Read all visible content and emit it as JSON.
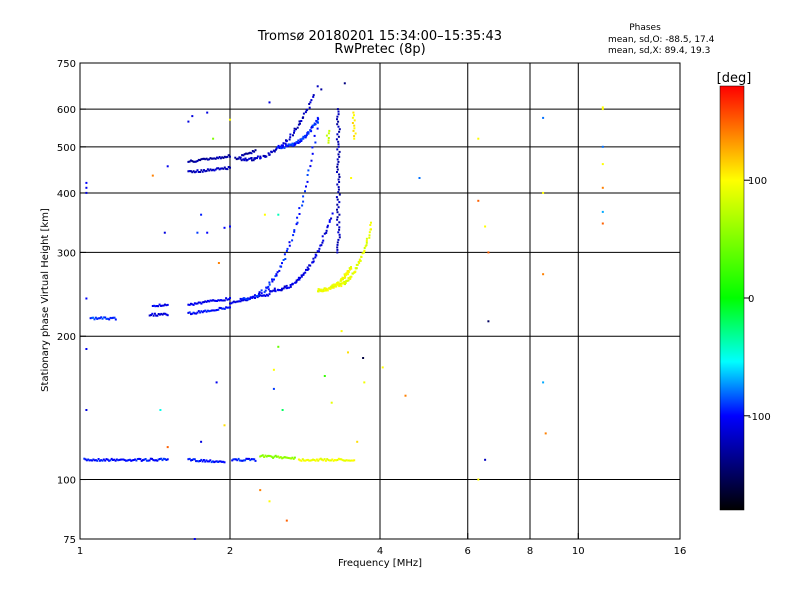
{
  "header": {
    "title_line1": "Tromsø 20180201 15:34:00–15:35:43",
    "title_line2": "RwPretec (8p)"
  },
  "stats": {
    "title": "Phases",
    "line_o": "mean, sd,O: -88.5, 17.4",
    "line_x": "mean, sd,X:  89.4, 19.3"
  },
  "colorbar": {
    "label": "[deg]",
    "range": [
      -180,
      180
    ],
    "ticks": [
      {
        "value": 100,
        "label": "100"
      },
      {
        "value": 0,
        "label": "0"
      },
      {
        "value": -100,
        "label": "-100"
      }
    ]
  },
  "chart_data": {
    "type": "scatter",
    "title": "Tromsø 20180201 15:34:00–15:35:43",
    "subtitle": "RwPretec (8p)",
    "xlabel": "Frequency [MHz]",
    "ylabel": "Stationary phase Virtual Height [km]",
    "xlim": [
      1,
      16
    ],
    "ylim": [
      75,
      750
    ],
    "x_scale": "log",
    "y_scale": "log",
    "x_ticks": [
      {
        "value": 1,
        "label": "1"
      },
      {
        "value": 2,
        "label": "2"
      },
      {
        "value": 4,
        "label": "4"
      },
      {
        "value": 6,
        "label": "6"
      },
      {
        "value": 8,
        "label": "8"
      },
      {
        "value": 10,
        "label": "10"
      },
      {
        "value": 16,
        "label": "16"
      }
    ],
    "y_ticks": [
      {
        "value": 75,
        "label": "75"
      },
      {
        "value": 100,
        "label": "100"
      },
      {
        "value": 200,
        "label": "200"
      },
      {
        "value": 300,
        "label": "300"
      },
      {
        "value": 400,
        "label": "400"
      },
      {
        "value": 500,
        "label": "500"
      },
      {
        "value": 600,
        "label": "600"
      },
      {
        "value": 750,
        "label": "750"
      }
    ],
    "grid_x": [
      2,
      4,
      6,
      8,
      10
    ],
    "grid_y": [
      100,
      200,
      300,
      400,
      500,
      600
    ],
    "color_scale": "phase deg (-180 black, -100 blue, 0 green, 100 yellow, 180 red)",
    "segments": [
      {
        "x0": 1.02,
        "x1": 1.5,
        "y0": 110,
        "y1": 110,
        "phase": -98
      },
      {
        "x0": 1.65,
        "x1": 1.95,
        "y0": 110,
        "y1": 109,
        "phase": -98
      },
      {
        "x0": 2.02,
        "x1": 2.25,
        "y0": 110,
        "y1": 110,
        "phase": -95
      },
      {
        "x0": 2.3,
        "x1": 2.7,
        "y0": 112,
        "y1": 111,
        "phase": 55
      },
      {
        "x0": 2.75,
        "x1": 3.55,
        "y0": 110,
        "y1": 110,
        "phase": 95
      },
      {
        "x0": 1.38,
        "x1": 1.5,
        "y0": 222,
        "y1": 222,
        "phase": -110
      },
      {
        "x0": 1.4,
        "x1": 1.5,
        "y0": 232,
        "y1": 232,
        "phase": -105
      },
      {
        "x0": 1.65,
        "x1": 2.0,
        "y0": 223,
        "y1": 230,
        "phase": -100
      },
      {
        "x0": 1.65,
        "x1": 2.0,
        "y0": 233,
        "y1": 240,
        "phase": -105
      },
      {
        "x0": 2.0,
        "x1": 2.4,
        "y0": 235,
        "y1": 245,
        "phase": -110
      },
      {
        "x0": 1.65,
        "x1": 2.0,
        "y0": 442,
        "y1": 452,
        "phase": -120
      },
      {
        "x0": 1.65,
        "x1": 2.0,
        "y0": 465,
        "y1": 478,
        "phase": -130
      },
      {
        "x0": 2.05,
        "x1": 2.25,
        "y0": 472,
        "y1": 490,
        "phase": -130
      },
      {
        "x0": 1.05,
        "x1": 1.18,
        "y0": 218,
        "y1": 218,
        "phase": -90
      }
    ],
    "curves": [
      {
        "x0": 2.1,
        "x1": 3.0,
        "y_start": 240,
        "y_end": 560,
        "phase": -95
      },
      {
        "x0": 2.4,
        "x1": 3.2,
        "y_start": 250,
        "y_end": 360,
        "phase": -110
      },
      {
        "x0": 2.1,
        "x1": 2.95,
        "y_start": 470,
        "y_end": 640,
        "phase": -120
      },
      {
        "x0": 2.5,
        "x1": 3.0,
        "y_start": 500,
        "y_end": 575,
        "phase": -95
      },
      {
        "x0": 3.2,
        "x1": 3.85,
        "y_start": 255,
        "y_end": 345,
        "phase": 90
      },
      {
        "x0": 3.0,
        "x1": 3.5,
        "y_start": 250,
        "y_end": 280,
        "phase": 95
      }
    ],
    "vertical_traces": [
      {
        "x": 3.3,
        "y0": 300,
        "y1": 600,
        "phase": -125
      },
      {
        "x": 3.55,
        "y0": 520,
        "y1": 590,
        "phase": 105
      },
      {
        "x": 3.15,
        "y0": 510,
        "y1": 540,
        "phase": 80
      }
    ],
    "points": [
      {
        "x": 1.03,
        "y": 420,
        "phase": -100
      },
      {
        "x": 1.03,
        "y": 410,
        "phase": -105
      },
      {
        "x": 1.03,
        "y": 400,
        "phase": -110
      },
      {
        "x": 1.03,
        "y": 240,
        "phase": -100
      },
      {
        "x": 1.03,
        "y": 188,
        "phase": -105
      },
      {
        "x": 1.03,
        "y": 140,
        "phase": -110
      },
      {
        "x": 1.4,
        "y": 435,
        "phase": 140
      },
      {
        "x": 1.48,
        "y": 330,
        "phase": -110
      },
      {
        "x": 1.5,
        "y": 455,
        "phase": -105
      },
      {
        "x": 1.5,
        "y": 117,
        "phase": 150
      },
      {
        "x": 1.45,
        "y": 140,
        "phase": -50
      },
      {
        "x": 1.65,
        "y": 565,
        "phase": -110
      },
      {
        "x": 1.68,
        "y": 580,
        "phase": -110
      },
      {
        "x": 1.8,
        "y": 590,
        "phase": -110
      },
      {
        "x": 1.75,
        "y": 360,
        "phase": -95
      },
      {
        "x": 1.72,
        "y": 330,
        "phase": -90
      },
      {
        "x": 1.8,
        "y": 330,
        "phase": -100
      },
      {
        "x": 1.9,
        "y": 285,
        "phase": 140
      },
      {
        "x": 1.88,
        "y": 160,
        "phase": -105
      },
      {
        "x": 1.75,
        "y": 120,
        "phase": -110
      },
      {
        "x": 1.7,
        "y": 75,
        "phase": -100
      },
      {
        "x": 1.95,
        "y": 338,
        "phase": -100
      },
      {
        "x": 2.0,
        "y": 340,
        "phase": -100
      },
      {
        "x": 1.85,
        "y": 520,
        "phase": 50
      },
      {
        "x": 1.95,
        "y": 130,
        "phase": 110
      },
      {
        "x": 2.0,
        "y": 570,
        "phase": 100
      },
      {
        "x": 2.3,
        "y": 95,
        "phase": 140
      },
      {
        "x": 2.4,
        "y": 90,
        "phase": 100
      },
      {
        "x": 2.6,
        "y": 82,
        "phase": 150
      },
      {
        "x": 2.5,
        "y": 190,
        "phase": 40
      },
      {
        "x": 2.45,
        "y": 170,
        "phase": 100
      },
      {
        "x": 2.55,
        "y": 140,
        "phase": -20
      },
      {
        "x": 2.45,
        "y": 155,
        "phase": -90
      },
      {
        "x": 2.35,
        "y": 360,
        "phase": 100
      },
      {
        "x": 2.5,
        "y": 360,
        "phase": -40
      },
      {
        "x": 2.4,
        "y": 620,
        "phase": -110
      },
      {
        "x": 3.0,
        "y": 670,
        "phase": -120
      },
      {
        "x": 3.05,
        "y": 660,
        "phase": -130
      },
      {
        "x": 3.4,
        "y": 680,
        "phase": -140
      },
      {
        "x": 3.35,
        "y": 205,
        "phase": 100
      },
      {
        "x": 3.1,
        "y": 165,
        "phase": 20
      },
      {
        "x": 3.2,
        "y": 145,
        "phase": 90
      },
      {
        "x": 3.45,
        "y": 185,
        "phase": 110
      },
      {
        "x": 3.5,
        "y": 430,
        "phase": 100
      },
      {
        "x": 3.7,
        "y": 180,
        "phase": -160
      },
      {
        "x": 3.72,
        "y": 160,
        "phase": 95
      },
      {
        "x": 3.6,
        "y": 120,
        "phase": 110
      },
      {
        "x": 4.05,
        "y": 172,
        "phase": 100
      },
      {
        "x": 4.5,
        "y": 150,
        "phase": 140
      },
      {
        "x": 4.8,
        "y": 430,
        "phase": -80
      },
      {
        "x": 6.3,
        "y": 520,
        "phase": 100
      },
      {
        "x": 6.3,
        "y": 385,
        "phase": 150
      },
      {
        "x": 6.5,
        "y": 340,
        "phase": 100
      },
      {
        "x": 6.6,
        "y": 300,
        "phase": 150
      },
      {
        "x": 6.6,
        "y": 215,
        "phase": -150
      },
      {
        "x": 6.5,
        "y": 110,
        "phase": -120
      },
      {
        "x": 6.3,
        "y": 100,
        "phase": 100
      },
      {
        "x": 8.5,
        "y": 575,
        "phase": -80
      },
      {
        "x": 8.5,
        "y": 400,
        "phase": 100
      },
      {
        "x": 8.5,
        "y": 270,
        "phase": 140
      },
      {
        "x": 8.5,
        "y": 160,
        "phase": -70
      },
      {
        "x": 8.6,
        "y": 125,
        "phase": 140
      },
      {
        "x": 11.2,
        "y": 605,
        "phase": 100
      },
      {
        "x": 11.2,
        "y": 500,
        "phase": -80
      },
      {
        "x": 11.2,
        "y": 460,
        "phase": 100
      },
      {
        "x": 11.2,
        "y": 410,
        "phase": 140
      },
      {
        "x": 11.2,
        "y": 365,
        "phase": -70
      },
      {
        "x": 11.2,
        "y": 345,
        "phase": 150
      },
      {
        "x": 11.2,
        "y": 600,
        "phase": 100
      }
    ]
  }
}
